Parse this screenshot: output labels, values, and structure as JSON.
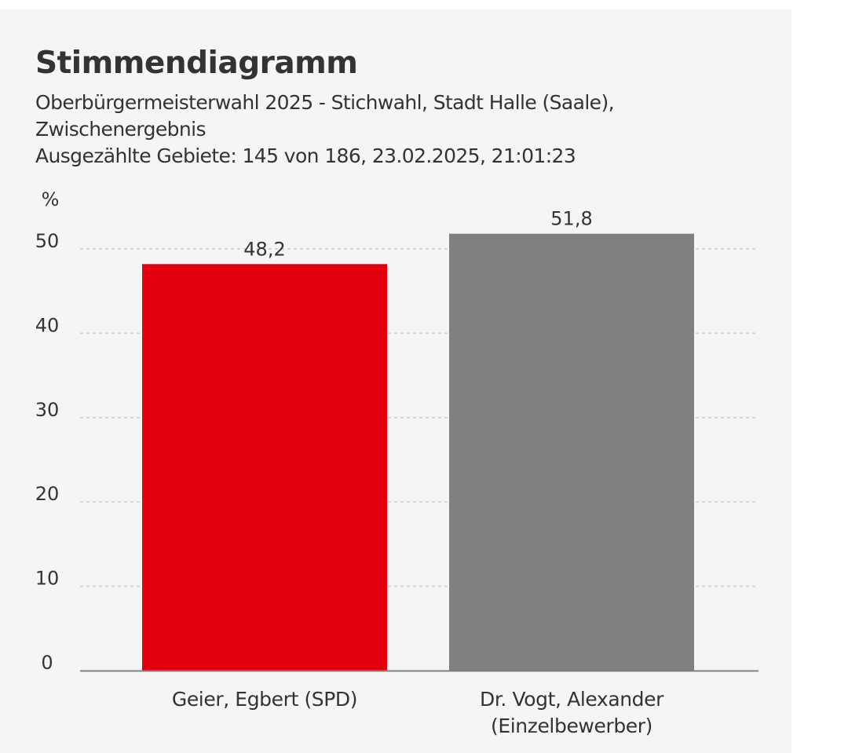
{
  "chart_data": {
    "type": "bar",
    "title": "Stimmendiagramm",
    "subtitle_lines": [
      "Oberbürgermeisterwahl 2025 - Stichwahl, Stadt Halle (Saale),",
      "Zwischenergebnis",
      "Ausgezählte Gebiete: 145 von 186, 23.02.2025, 21:01:23"
    ],
    "ylabel": "%",
    "xlabel": "",
    "ylim": [
      0,
      50
    ],
    "yticks": [
      {
        "value": 0,
        "label": "0"
      },
      {
        "value": 10,
        "label": "10"
      },
      {
        "value": 20,
        "label": "20"
      },
      {
        "value": 30,
        "label": "30"
      },
      {
        "value": 40,
        "label": "40"
      },
      {
        "value": 50,
        "label": "50"
      }
    ],
    "grid": true,
    "bars": [
      {
        "category_lines": [
          "Geier, Egbert (SPD)"
        ],
        "value": 48.2,
        "value_label": "48,2",
        "color": "#e2000f"
      },
      {
        "category_lines": [
          "Dr. Vogt, Alexander",
          "(Einzelbewerber)"
        ],
        "value": 51.8,
        "value_label": "51,8",
        "color": "#808080"
      }
    ]
  }
}
